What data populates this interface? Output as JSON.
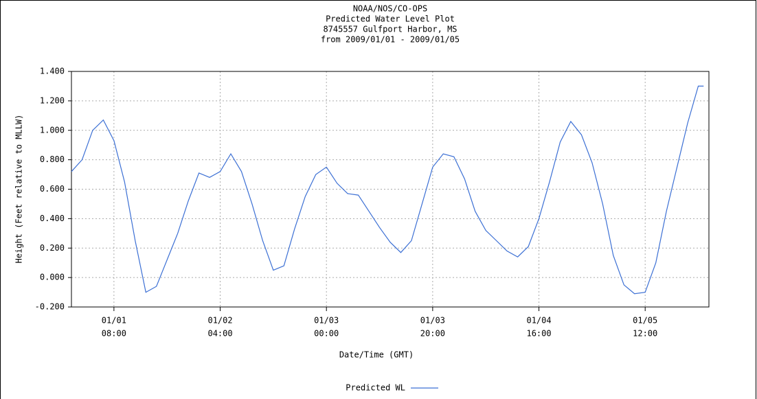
{
  "chart_data": {
    "type": "line",
    "title": [
      "NOAA/NOS/CO-OPS",
      "Predicted Water Level Plot",
      "8745557 Gulfport Harbor, MS",
      "from 2009/01/01 - 2009/01/05"
    ],
    "xlabel": "Date/Time (GMT)",
    "ylabel": "Height (Feet relative to MLLW)",
    "x": [
      "01/01 00:00",
      "01/01 02:00",
      "01/01 04:00",
      "01/01 06:00",
      "01/01 08:00",
      "01/01 10:00",
      "01/01 12:00",
      "01/01 14:00",
      "01/01 16:00",
      "01/01 18:00",
      "01/01 20:00",
      "01/01 22:00",
      "01/02 00:00",
      "01/02 02:00",
      "01/02 04:00",
      "01/02 06:00",
      "01/02 08:00",
      "01/02 10:00",
      "01/02 12:00",
      "01/02 14:00",
      "01/02 16:00",
      "01/02 18:00",
      "01/02 20:00",
      "01/02 22:00",
      "01/03 00:00",
      "01/03 02:00",
      "01/03 04:00",
      "01/03 06:00",
      "01/03 08:00",
      "01/03 10:00",
      "01/03 12:00",
      "01/03 14:00",
      "01/03 16:00",
      "01/03 18:00",
      "01/03 20:00",
      "01/03 22:00",
      "01/04 00:00",
      "01/04 02:00",
      "01/04 04:00",
      "01/04 06:00",
      "01/04 08:00",
      "01/04 10:00",
      "01/04 12:00",
      "01/04 14:00",
      "01/04 16:00",
      "01/04 18:00",
      "01/04 20:00",
      "01/04 22:00",
      "01/05 00:00",
      "01/05 02:00",
      "01/05 04:00",
      "01/05 06:00",
      "01/05 08:00",
      "01/05 10:00",
      "01/05 12:00",
      "01/05 14:00",
      "01/05 16:00",
      "01/05 18:00",
      "01/05 20:00",
      "01/05 22:00",
      "01/05 23:00"
    ],
    "series": [
      {
        "name": "Predicted WL",
        "color": "#3b6fd4",
        "values": [
          0.72,
          0.8,
          1.0,
          1.07,
          0.93,
          0.65,
          0.25,
          -0.1,
          -0.06,
          0.12,
          0.3,
          0.52,
          0.71,
          0.68,
          0.72,
          0.84,
          0.72,
          0.5,
          0.25,
          0.05,
          0.08,
          0.33,
          0.55,
          0.7,
          0.75,
          0.64,
          0.57,
          0.56,
          0.45,
          0.34,
          0.24,
          0.17,
          0.25,
          0.5,
          0.75,
          0.84,
          0.82,
          0.67,
          0.45,
          0.32,
          0.25,
          0.18,
          0.14,
          0.21,
          0.4,
          0.65,
          0.92,
          1.06,
          0.97,
          0.78,
          0.5,
          0.15,
          -0.05,
          -0.11,
          -0.1,
          0.1,
          0.45,
          0.75,
          1.05,
          1.3,
          1.3
        ]
      }
    ],
    "xlim": [
      "01/01 00:00",
      "01/06 00:00"
    ],
    "xticks": [
      {
        "value": "01/01 08:00",
        "label": [
          "01/01",
          "08:00"
        ]
      },
      {
        "value": "01/02 04:00",
        "label": [
          "01/02",
          "04:00"
        ]
      },
      {
        "value": "01/03 00:00",
        "label": [
          "01/03",
          "00:00"
        ]
      },
      {
        "value": "01/03 20:00",
        "label": [
          "01/03",
          "20:00"
        ]
      },
      {
        "value": "01/04 16:00",
        "label": [
          "01/04",
          "16:00"
        ]
      },
      {
        "value": "01/05 12:00",
        "label": [
          "01/05",
          "12:00"
        ]
      }
    ],
    "ylim": [
      -0.2,
      1.4
    ],
    "yticks": [
      {
        "value": -0.2,
        "label": "-0.200"
      },
      {
        "value": 0,
        "label": "0.000"
      },
      {
        "value": 0.2,
        "label": "0.200"
      },
      {
        "value": 0.4,
        "label": "0.400"
      },
      {
        "value": 0.6,
        "label": "0.600"
      },
      {
        "value": 0.8,
        "label": "0.800"
      },
      {
        "value": 1.0,
        "label": "1.000"
      },
      {
        "value": 1.2,
        "label": "1.200"
      },
      {
        "value": 1.4,
        "label": "1.400"
      }
    ],
    "grid": true
  }
}
